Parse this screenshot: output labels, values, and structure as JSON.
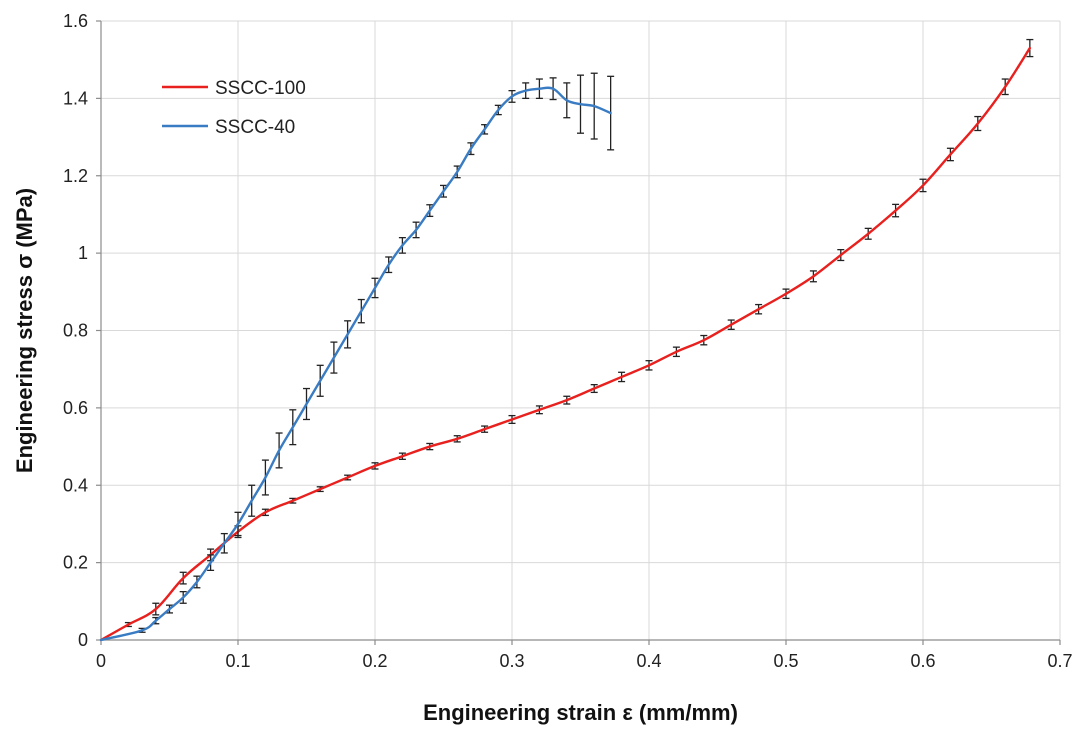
{
  "chart_data": {
    "type": "line",
    "title": "",
    "xlabel": "Engineering strain ε (mm/mm)",
    "ylabel": "Engineering stress σ (MPa)",
    "xlim": [
      0,
      0.7
    ],
    "ylim": [
      0,
      1.6
    ],
    "xticks": [
      0,
      0.1,
      0.2,
      0.3,
      0.4,
      0.5,
      0.6,
      0.7
    ],
    "yticks": [
      0,
      0.2,
      0.4,
      0.6,
      0.8,
      1,
      1.2,
      1.4,
      1.6
    ],
    "xtick_labels": [
      "0",
      "0.1",
      "0.2",
      "0.3",
      "0.4",
      "0.5",
      "0.6",
      "0.7"
    ],
    "ytick_labels": [
      "0",
      "0.2",
      "0.4",
      "0.6",
      "0.8",
      "1",
      "1.2",
      "1.4",
      "1.6"
    ],
    "grid": true,
    "legend_position": "top-left",
    "series": [
      {
        "name": "SSCC-100",
        "color": "#e8201e",
        "x": [
          0,
          0.02,
          0.04,
          0.06,
          0.08,
          0.1,
          0.12,
          0.14,
          0.16,
          0.18,
          0.2,
          0.22,
          0.24,
          0.26,
          0.28,
          0.3,
          0.32,
          0.34,
          0.36,
          0.38,
          0.4,
          0.42,
          0.44,
          0.46,
          0.48,
          0.5,
          0.52,
          0.54,
          0.56,
          0.58,
          0.6,
          0.62,
          0.64,
          0.66,
          0.678
        ],
        "y": [
          0,
          0.04,
          0.08,
          0.16,
          0.22,
          0.28,
          0.33,
          0.36,
          0.39,
          0.42,
          0.45,
          0.475,
          0.5,
          0.52,
          0.545,
          0.57,
          0.595,
          0.62,
          0.65,
          0.68,
          0.71,
          0.745,
          0.775,
          0.815,
          0.855,
          0.895,
          0.94,
          0.995,
          1.05,
          1.11,
          1.175,
          1.255,
          1.335,
          1.43,
          1.53
        ],
        "error": [
          0,
          0.005,
          0.015,
          0.015,
          0.015,
          0.015,
          0.008,
          0.006,
          0.006,
          0.006,
          0.008,
          0.008,
          0.008,
          0.008,
          0.008,
          0.01,
          0.01,
          0.01,
          0.01,
          0.012,
          0.012,
          0.012,
          0.012,
          0.012,
          0.012,
          0.012,
          0.014,
          0.014,
          0.014,
          0.016,
          0.016,
          0.016,
          0.018,
          0.02,
          0.022
        ]
      },
      {
        "name": "SSCC-40",
        "color": "#3a7cc3",
        "x": [
          0,
          0.03,
          0.04,
          0.05,
          0.06,
          0.07,
          0.08,
          0.09,
          0.1,
          0.11,
          0.12,
          0.13,
          0.14,
          0.15,
          0.16,
          0.17,
          0.18,
          0.19,
          0.2,
          0.21,
          0.22,
          0.23,
          0.24,
          0.25,
          0.26,
          0.27,
          0.28,
          0.29,
          0.3,
          0.31,
          0.32,
          0.33,
          0.34,
          0.35,
          0.36,
          0.372
        ],
        "y": [
          0,
          0.025,
          0.05,
          0.08,
          0.11,
          0.15,
          0.2,
          0.25,
          0.3,
          0.36,
          0.42,
          0.49,
          0.55,
          0.61,
          0.67,
          0.73,
          0.79,
          0.85,
          0.91,
          0.97,
          1.02,
          1.06,
          1.11,
          1.16,
          1.21,
          1.27,
          1.32,
          1.37,
          1.405,
          1.42,
          1.425,
          1.425,
          1.395,
          1.385,
          1.38,
          1.362
        ],
        "error": [
          0,
          0.005,
          0.008,
          0.01,
          0.015,
          0.015,
          0.02,
          0.025,
          0.03,
          0.04,
          0.045,
          0.045,
          0.045,
          0.04,
          0.04,
          0.04,
          0.035,
          0.03,
          0.025,
          0.02,
          0.02,
          0.02,
          0.015,
          0.015,
          0.015,
          0.015,
          0.012,
          0.012,
          0.015,
          0.02,
          0.025,
          0.028,
          0.045,
          0.075,
          0.085,
          0.095
        ]
      }
    ]
  }
}
